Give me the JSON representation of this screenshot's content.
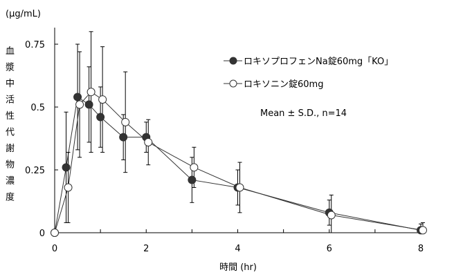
{
  "chart_data": {
    "type": "line",
    "unit_label": "(μg/mL)",
    "ylabel": "血漿中活性代謝物濃度",
    "xlabel": "時間 (hr)",
    "xlim": [
      0,
      8
    ],
    "ylim": [
      0,
      0.8
    ],
    "xticks": [
      0,
      2,
      4,
      6,
      8
    ],
    "xtick_labels": [
      "0",
      "2",
      "4",
      "6",
      "8"
    ],
    "yticks": [
      0,
      0.25,
      0.5,
      0.75
    ],
    "ytick_labels": [
      "0",
      "0.25",
      "0.5",
      "0.75"
    ],
    "grid": false,
    "legend_placement": "top-right",
    "annotation": "Mean ± S.D., n=14",
    "series": [
      {
        "name": "ロキソプロフェンNa錠60mg「KO」",
        "marker": "filled-circle",
        "color": "#333333",
        "x": [
          0,
          0.25,
          0.5,
          0.75,
          1,
          1.5,
          2,
          3,
          4,
          6,
          8
        ],
        "y": [
          0,
          0.26,
          0.54,
          0.51,
          0.46,
          0.38,
          0.38,
          0.21,
          0.18,
          0.08,
          0.01
        ],
        "err_low": [
          0,
          0.04,
          0.33,
          0.36,
          0.34,
          0.29,
          0.32,
          0.12,
          0.11,
          0.03,
          0
        ],
        "err_high": [
          0,
          0.48,
          0.75,
          0.66,
          0.58,
          0.47,
          0.44,
          0.3,
          0.25,
          0.13,
          0.035
        ]
      },
      {
        "name": "ロキソニン錠60mg",
        "marker": "open-circle",
        "color": "#ffffff",
        "x": [
          0,
          0.25,
          0.5,
          0.75,
          1,
          1.5,
          2,
          3,
          4,
          6,
          8
        ],
        "y": [
          0,
          0.18,
          0.51,
          0.56,
          0.53,
          0.44,
          0.36,
          0.26,
          0.18,
          0.07,
          0.01
        ],
        "err_low": [
          0,
          0.04,
          0.3,
          0.32,
          0.32,
          0.24,
          0.27,
          0.18,
          0.08,
          0,
          0
        ],
        "err_high": [
          0,
          0.32,
          0.72,
          0.8,
          0.74,
          0.64,
          0.45,
          0.34,
          0.28,
          0.15,
          0.04
        ]
      }
    ]
  }
}
